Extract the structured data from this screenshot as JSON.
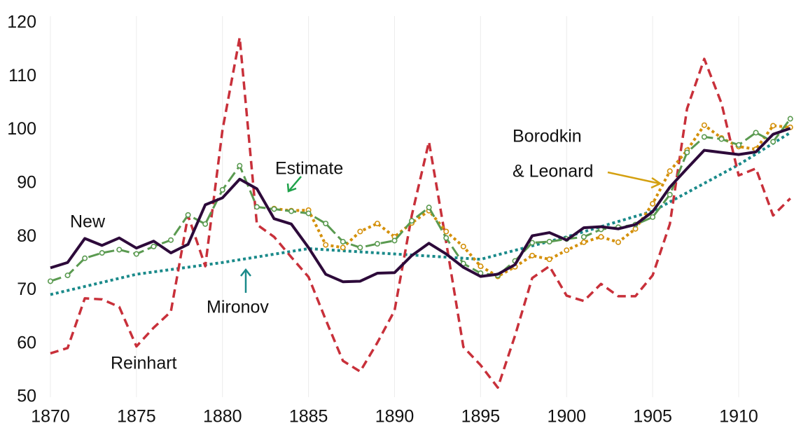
{
  "chart_data": {
    "type": "line",
    "x": [
      1870,
      1871,
      1872,
      1873,
      1874,
      1875,
      1876,
      1877,
      1878,
      1879,
      1880,
      1881,
      1882,
      1883,
      1884,
      1885,
      1886,
      1887,
      1888,
      1889,
      1890,
      1891,
      1892,
      1893,
      1894,
      1895,
      1896,
      1897,
      1898,
      1899,
      1900,
      1901,
      1902,
      1903,
      1904,
      1905,
      1906,
      1907,
      1908,
      1909,
      1910,
      1911,
      1912,
      1913
    ],
    "xlim": [
      1870,
      1913.6
    ],
    "xticks": [
      1870,
      1875,
      1880,
      1885,
      1890,
      1895,
      1900,
      1905,
      1910
    ],
    "ylim": [
      50,
      120
    ],
    "yticks": [
      50,
      60,
      70,
      80,
      90,
      100,
      110,
      120
    ],
    "grid": "x",
    "annotations": [
      "New",
      "Reinhart",
      "Estimate",
      "Mironov",
      "Borodkin",
      "& Leonard"
    ],
    "series": [
      {
        "name": "Mironov",
        "color": "#1a8a8a",
        "style": "dotted",
        "markers": false,
        "x": [
          1870,
          1875,
          1880,
          1885,
          1890,
          1895,
          1900,
          1905,
          1910,
          1913
        ],
        "values": [
          69.2,
          73.0,
          75.2,
          77.8,
          76.8,
          75.8,
          80.0,
          84.8,
          93.5,
          99.5
        ]
      },
      {
        "name": "Reinhart",
        "color": "#c8303a",
        "style": "dashed",
        "markers": false,
        "values": [
          58.2,
          59.2,
          68.5,
          68.3,
          66.9,
          59.5,
          63.0,
          66.0,
          84.0,
          74.5,
          100.0,
          117.3,
          82.3,
          80.0,
          76.2,
          72.5,
          64.5,
          56.8,
          54.8,
          60.2,
          66.2,
          84.0,
          97.8,
          79.0,
          59.4,
          56.0,
          51.8,
          61.5,
          72.3,
          74.5,
          69.0,
          68.0,
          71.2,
          68.9,
          68.9,
          72.8,
          82.4,
          104.0,
          113.3,
          105.0,
          91.5,
          92.8,
          84.0,
          87.2
        ]
      },
      {
        "name": "Borodkin & Leonard",
        "color": "#d4900a",
        "style": "dotted",
        "markers": true,
        "values": [
          null,
          null,
          null,
          null,
          null,
          null,
          null,
          null,
          null,
          null,
          null,
          null,
          null,
          85.3,
          84.9,
          85.0,
          78.5,
          78.0,
          81.0,
          82.5,
          80.0,
          82.6,
          84.9,
          81.0,
          78.2,
          74.5,
          72.6,
          74.4,
          76.5,
          75.8,
          77.5,
          79.0,
          80.0,
          79.0,
          81.5,
          86.2,
          92.3,
          96.2,
          100.9,
          98.5,
          96.9,
          96.4,
          100.8,
          100.5
        ]
      },
      {
        "name": "Estimate",
        "color": "#5a9a50",
        "style": "longdash",
        "markers": true,
        "values": [
          71.7,
          72.8,
          76.0,
          77.0,
          77.6,
          76.8,
          78.2,
          79.4,
          84.1,
          82.4,
          88.8,
          93.3,
          85.6,
          85.2,
          84.8,
          84.4,
          82.5,
          79.1,
          78.0,
          78.7,
          79.3,
          83.0,
          85.5,
          79.8,
          75.0,
          73.2,
          72.8,
          75.5,
          78.9,
          79.1,
          79.6,
          80.0,
          81.4,
          81.8,
          82.3,
          83.7,
          87.9,
          95.8,
          98.7,
          98.3,
          97.2,
          99.5,
          97.8,
          102.1
        ]
      },
      {
        "name": "New",
        "color": "#2d0a3a",
        "style": "solid",
        "markers": false,
        "values": [
          74.2,
          75.2,
          79.7,
          78.4,
          79.8,
          77.9,
          79.2,
          77.0,
          78.6,
          86.0,
          87.3,
          90.8,
          89.0,
          83.4,
          82.4,
          78.0,
          73.0,
          71.6,
          71.7,
          73.2,
          73.3,
          76.5,
          78.8,
          76.8,
          74.3,
          72.6,
          73.0,
          74.8,
          80.2,
          80.8,
          79.4,
          81.7,
          81.9,
          81.5,
          82.3,
          84.7,
          89.3,
          92.8,
          96.2,
          95.8,
          95.4,
          95.9,
          99.2,
          100.3
        ]
      }
    ]
  }
}
